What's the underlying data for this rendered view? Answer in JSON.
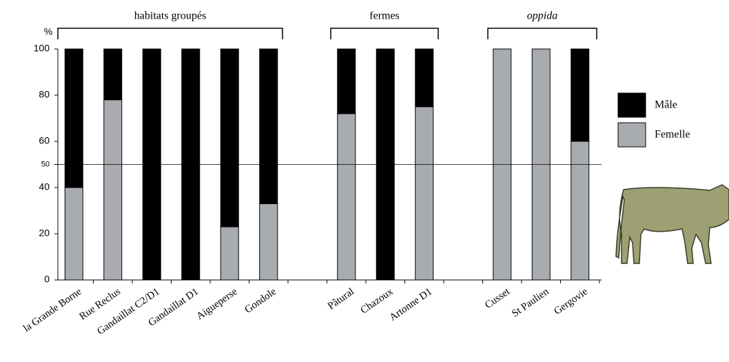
{
  "chart_data": {
    "type": "stacked_bar",
    "y_label": "%",
    "categories": [
      "la Grande Borne",
      "Rue Reclus",
      "Gandaillat C2/D1",
      "Gandaillat D1",
      "Aigueperse",
      "Gondole",
      null,
      "Pâtural",
      "Chazoux",
      "Artonne D1",
      null,
      "Cusset",
      "St Paulien",
      "Gergovie"
    ],
    "series": [
      {
        "name": "Mâle",
        "color": "#000000",
        "values": [
          60,
          22,
          100,
          100,
          77,
          67,
          null,
          28,
          100,
          25,
          null,
          0,
          0,
          40
        ]
      },
      {
        "name": "Femelle",
        "color": "#a8abb0",
        "values": [
          40,
          78,
          0,
          0,
          23,
          33,
          null,
          72,
          0,
          75,
          null,
          100,
          100,
          60
        ]
      }
    ],
    "groups": [
      "habitats groupés",
      "fermes",
      "oppida"
    ],
    "ylim": [
      0,
      100
    ],
    "yticks": [
      0,
      20,
      40,
      50,
      60,
      80,
      100
    ],
    "hline": 50,
    "legend": "right"
  }
}
